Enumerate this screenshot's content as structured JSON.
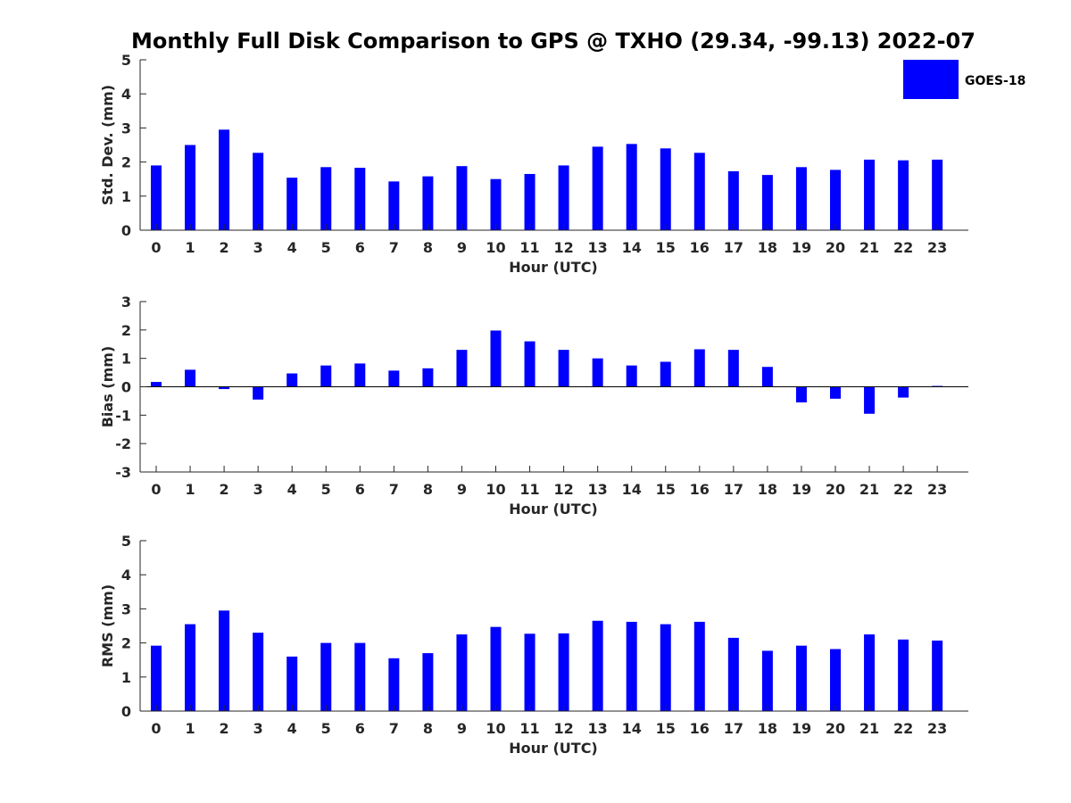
{
  "title": "Monthly Full Disk Comparison to GPS @ TXHO (29.34, -99.13) 2022-07",
  "legend": {
    "label": "GOES-18",
    "position": "top-right"
  },
  "colors": {
    "bar": "#0000ff",
    "axis": "#262626"
  },
  "chart_data": [
    {
      "type": "bar",
      "xlabel": "Hour (UTC)",
      "ylabel": "Std. Dev. (mm)",
      "ylim": [
        0,
        5
      ],
      "yticks": [
        0,
        1,
        2,
        3,
        4,
        5
      ],
      "categories": [
        "0",
        "1",
        "2",
        "3",
        "4",
        "5",
        "6",
        "7",
        "8",
        "9",
        "10",
        "11",
        "12",
        "13",
        "14",
        "15",
        "16",
        "17",
        "18",
        "19",
        "20",
        "21",
        "22",
        "23"
      ],
      "series": [
        {
          "name": "GOES-18",
          "values": [
            1.9,
            2.5,
            2.95,
            2.27,
            1.54,
            1.85,
            1.83,
            1.43,
            1.58,
            1.88,
            1.5,
            1.65,
            1.9,
            2.45,
            2.53,
            2.4,
            2.27,
            1.73,
            1.62,
            1.85,
            1.77,
            2.07,
            2.05,
            2.07
          ]
        }
      ],
      "grid": false
    },
    {
      "type": "bar",
      "xlabel": "Hour (UTC)",
      "ylabel": "Bias (mm)",
      "ylim": [
        -3,
        3
      ],
      "yticks": [
        -3,
        -2,
        -1,
        0,
        1,
        2,
        3
      ],
      "categories": [
        "0",
        "1",
        "2",
        "3",
        "4",
        "5",
        "6",
        "7",
        "8",
        "9",
        "10",
        "11",
        "12",
        "13",
        "14",
        "15",
        "16",
        "17",
        "18",
        "19",
        "20",
        "21",
        "22",
        "23"
      ],
      "series": [
        {
          "name": "GOES-18",
          "values": [
            0.17,
            0.6,
            -0.08,
            -0.45,
            0.47,
            0.75,
            0.82,
            0.57,
            0.65,
            1.3,
            1.98,
            1.6,
            1.3,
            1.0,
            0.75,
            0.88,
            1.32,
            1.3,
            0.7,
            -0.55,
            -0.42,
            -0.95,
            -0.38,
            0.03
          ]
        }
      ],
      "grid": false
    },
    {
      "type": "bar",
      "xlabel": "Hour (UTC)",
      "ylabel": "RMS (mm)",
      "ylim": [
        0,
        5
      ],
      "yticks": [
        0,
        1,
        2,
        3,
        4,
        5
      ],
      "categories": [
        "0",
        "1",
        "2",
        "3",
        "4",
        "5",
        "6",
        "7",
        "8",
        "9",
        "10",
        "11",
        "12",
        "13",
        "14",
        "15",
        "16",
        "17",
        "18",
        "19",
        "20",
        "21",
        "22",
        "23"
      ],
      "series": [
        {
          "name": "GOES-18",
          "values": [
            1.92,
            2.55,
            2.95,
            2.3,
            1.6,
            2.0,
            2.0,
            1.55,
            1.7,
            2.25,
            2.47,
            2.27,
            2.28,
            2.65,
            2.62,
            2.55,
            2.62,
            2.15,
            1.77,
            1.92,
            1.82,
            2.25,
            2.1,
            2.07
          ]
        }
      ],
      "grid": false
    }
  ]
}
